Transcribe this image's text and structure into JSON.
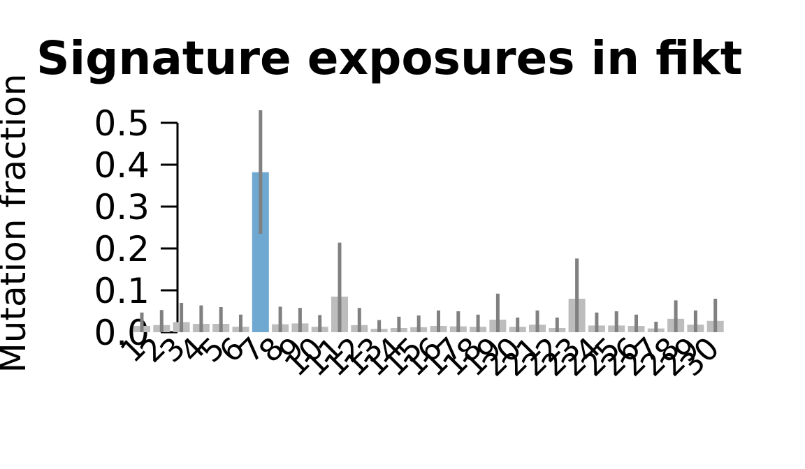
{
  "chart_data": {
    "type": "bar",
    "title": "Signature exposures in fikt",
    "ylabel": "Mutation fraction",
    "xlabel": "",
    "ylim": [
      0,
      0.5
    ],
    "yticks": [
      "0.0",
      "0.1",
      "0.2",
      "0.3",
      "0.4",
      "0.5"
    ],
    "categories": [
      "1",
      "2",
      "3",
      "4",
      "5",
      "6",
      "7",
      "8",
      "9",
      "10",
      "11",
      "12",
      "13",
      "14",
      "15",
      "16",
      "17",
      "18",
      "19",
      "20",
      "21",
      "22",
      "23",
      "24",
      "25",
      "26",
      "27",
      "28",
      "29",
      "30"
    ],
    "values": [
      0.015,
      0.017,
      0.024,
      0.02,
      0.02,
      0.013,
      0.382,
      0.019,
      0.021,
      0.013,
      0.085,
      0.017,
      0.008,
      0.01,
      0.012,
      0.015,
      0.014,
      0.013,
      0.03,
      0.013,
      0.018,
      0.01,
      0.08,
      0.016,
      0.016,
      0.015,
      0.009,
      0.032,
      0.018,
      0.027
    ],
    "error_upper": [
      0.047,
      0.053,
      0.07,
      0.064,
      0.06,
      0.042,
      0.53,
      0.061,
      0.058,
      0.041,
      0.214,
      0.058,
      0.029,
      0.037,
      0.04,
      0.052,
      0.05,
      0.042,
      0.092,
      0.035,
      0.052,
      0.035,
      0.176,
      0.047,
      0.05,
      0.042,
      0.025,
      0.076,
      0.052,
      0.08
    ],
    "error_lower": [
      0,
      0,
      0,
      0,
      0,
      0,
      0.235,
      0,
      0,
      0,
      0,
      0,
      0,
      0,
      0,
      0,
      0,
      0,
      0,
      0,
      0,
      0,
      0,
      0,
      0,
      0,
      0,
      0,
      0,
      0
    ],
    "highlighted_category": "7",
    "colors": {
      "highlight_bar": "#6fa8d0",
      "default_bar": "#bdbdbd",
      "error_bar": "#808080",
      "axis": "#000000"
    }
  }
}
